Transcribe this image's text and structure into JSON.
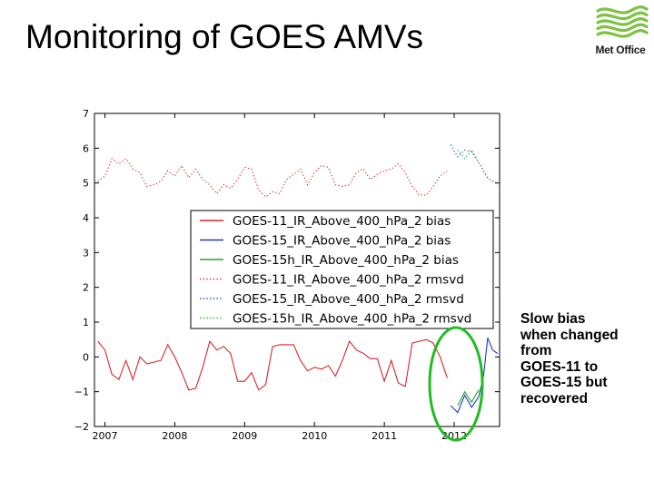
{
  "slide": {
    "title": "Monitoring of GOES AMVs",
    "logo_text": "Met Office",
    "callout_lines": [
      "Slow bias",
      "when changed",
      "from",
      "GOES-11 to",
      "GOES-15 but",
      "recovered"
    ]
  },
  "colors": {
    "goes11": "#d62728",
    "goes15": "#1f3bbf",
    "goes15h": "#2ca02c",
    "highlight_ellipse": "#22bb22",
    "logo": "#7dc242"
  },
  "chart_data": {
    "type": "line",
    "title": "",
    "xlabel": "",
    "ylabel": "",
    "xlim": [
      2006.85,
      2012.65
    ],
    "ylim": [
      -2,
      7
    ],
    "x_ticks": [
      2007,
      2008,
      2009,
      2010,
      2011,
      2012
    ],
    "x_tick_labels": [
      "2007",
      "2008",
      "2009",
      "2010",
      "2011",
      "2012"
    ],
    "y_ticks": [
      -2,
      -1,
      0,
      1,
      2,
      3,
      4,
      5,
      6,
      7
    ],
    "y_tick_labels": [
      "−2",
      "−1",
      "0",
      "1",
      "2",
      "3",
      "4",
      "5",
      "6",
      "7"
    ],
    "grid": false,
    "legend_position": "center",
    "series": [
      {
        "name": "GOES-11_IR_Above_400_hPa_2 bias",
        "color": "#d62728",
        "style": "solid",
        "x": [
          2006.9,
          2007.0,
          2007.1,
          2007.2,
          2007.3,
          2007.4,
          2007.5,
          2007.6,
          2007.7,
          2007.8,
          2007.9,
          2008.0,
          2008.1,
          2008.2,
          2008.3,
          2008.4,
          2008.5,
          2008.6,
          2008.7,
          2008.8,
          2008.9,
          2009.0,
          2009.1,
          2009.2,
          2009.3,
          2009.4,
          2009.5,
          2009.6,
          2009.7,
          2009.8,
          2009.9,
          2010.0,
          2010.1,
          2010.2,
          2010.3,
          2010.4,
          2010.5,
          2010.6,
          2010.7,
          2010.8,
          2010.9,
          2011.0,
          2011.1,
          2011.2,
          2011.3,
          2011.4,
          2011.5,
          2011.6,
          2011.7,
          2011.8,
          2011.9
        ],
        "y": [
          0.45,
          0.2,
          -0.5,
          -0.65,
          -0.1,
          -0.65,
          0.0,
          -0.2,
          -0.15,
          -0.1,
          0.35,
          0.0,
          -0.45,
          -0.95,
          -0.9,
          -0.3,
          0.45,
          0.2,
          0.3,
          0.1,
          -0.7,
          -0.7,
          -0.45,
          -0.95,
          -0.8,
          0.3,
          0.35,
          0.35,
          0.35,
          -0.1,
          -0.4,
          -0.3,
          -0.35,
          -0.25,
          -0.55,
          -0.1,
          0.45,
          0.2,
          0.1,
          -0.05,
          -0.05,
          -0.7,
          -0.1,
          -0.75,
          -0.85,
          0.4,
          0.45,
          0.5,
          0.4,
          0.0,
          -0.6
        ]
      },
      {
        "name": "GOES-15_IR_Above_400_hPa_2 bias",
        "color": "#1f3bbf",
        "style": "solid",
        "x": [
          2011.95,
          2012.05,
          2012.15,
          2012.25,
          2012.35,
          2012.42,
          2012.48,
          2012.55,
          2012.62
        ],
        "y": [
          -1.4,
          -1.6,
          -1.1,
          -1.45,
          -1.15,
          -0.55,
          0.55,
          0.2,
          0.1
        ]
      },
      {
        "name": "GOES-15h_IR_Above_400_hPa_2 bias",
        "color": "#2ca02c",
        "style": "solid",
        "x": [
          2012.05,
          2012.15,
          2012.25,
          2012.35
        ],
        "y": [
          -1.4,
          -1.0,
          -1.3,
          -0.95
        ]
      },
      {
        "name": "GOES-11_IR_Above_400_hPa_2 rmsvd",
        "color": "#d62728",
        "style": "dotted",
        "x": [
          2006.9,
          2007.0,
          2007.1,
          2007.2,
          2007.3,
          2007.4,
          2007.5,
          2007.6,
          2007.7,
          2007.8,
          2007.9,
          2008.0,
          2008.1,
          2008.2,
          2008.3,
          2008.4,
          2008.5,
          2008.6,
          2008.7,
          2008.8,
          2008.9,
          2009.0,
          2009.1,
          2009.2,
          2009.3,
          2009.4,
          2009.5,
          2009.6,
          2009.7,
          2009.8,
          2009.9,
          2010.0,
          2010.1,
          2010.2,
          2010.3,
          2010.4,
          2010.5,
          2010.6,
          2010.7,
          2010.8,
          2010.9,
          2011.0,
          2011.1,
          2011.2,
          2011.3,
          2011.4,
          2011.5,
          2011.6,
          2011.7,
          2011.8,
          2011.9
        ],
        "y": [
          5.05,
          5.2,
          5.7,
          5.55,
          5.7,
          5.4,
          5.3,
          4.9,
          4.95,
          5.05,
          5.35,
          5.2,
          5.5,
          5.15,
          5.4,
          5.1,
          4.95,
          4.7,
          4.95,
          4.85,
          5.1,
          5.45,
          5.4,
          4.8,
          4.6,
          4.75,
          4.7,
          5.1,
          5.25,
          5.4,
          4.95,
          5.3,
          5.5,
          5.45,
          4.95,
          4.9,
          4.95,
          5.3,
          5.4,
          5.1,
          5.25,
          5.35,
          5.4,
          5.55,
          5.3,
          4.9,
          4.65,
          4.65,
          4.9,
          5.2,
          5.35
        ]
      },
      {
        "name": "GOES-15_IR_Above_400_hPa_2 rmsvd",
        "color": "#1f3bbf",
        "style": "dotted",
        "x": [
          2011.95,
          2012.05,
          2012.15,
          2012.25,
          2012.35,
          2012.42,
          2012.48,
          2012.55,
          2012.62
        ],
        "y": [
          6.1,
          5.75,
          5.95,
          5.9,
          5.6,
          5.35,
          5.15,
          5.05,
          5.0
        ]
      },
      {
        "name": "GOES-15h_IR_Above_400_hPa_2 rmsvd",
        "color": "#2ca02c",
        "style": "dotted",
        "x": [
          2012.05,
          2012.15,
          2012.25,
          2012.35
        ],
        "y": [
          5.95,
          5.7,
          5.95,
          5.6
        ]
      }
    ]
  }
}
